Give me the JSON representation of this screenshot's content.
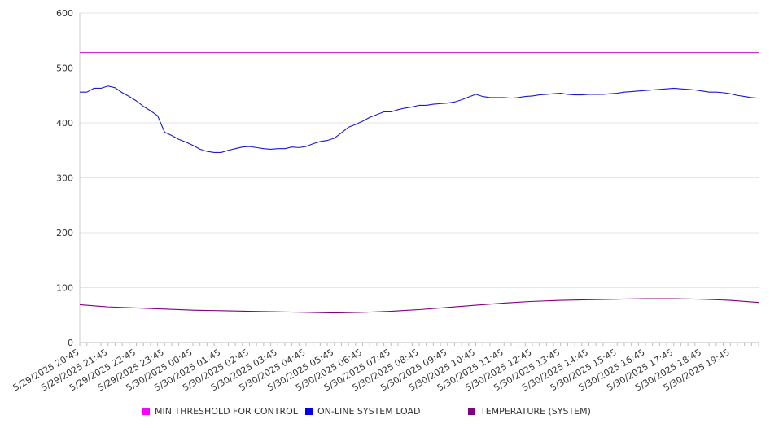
{
  "chart_data": {
    "type": "line",
    "title": "",
    "xlabel": "",
    "ylabel": "",
    "ylim": [
      0,
      600
    ],
    "y_ticks": [
      0,
      100,
      200,
      300,
      400,
      500,
      600
    ],
    "grid": "horizontal",
    "legend_position": "bottom",
    "x_start": "5/29/2025 20:45",
    "x_end": "5/30/2025 20:45",
    "x_tick_labels": [
      "5/29/2025 20:45",
      "5/29/2025 21:45",
      "5/29/2025 22:45",
      "5/29/2025 23:45",
      "5/30/2025 00:45",
      "5/30/2025 01:45",
      "5/30/2025 02:45",
      "5/30/2025 03:45",
      "5/30/2025 04:45",
      "5/30/2025 05:45",
      "5/30/2025 06:45",
      "5/30/2025 07:45",
      "5/30/2025 08:45",
      "5/30/2025 09:45",
      "5/30/2025 10:45",
      "5/30/2025 11:45",
      "5/30/2025 12:45",
      "5/30/2025 13:45",
      "5/30/2025 14:45",
      "5/30/2025 15:45",
      "5/30/2025 16:45",
      "5/30/2025 17:45",
      "5/30/2025 18:45",
      "5/30/2025 19:45"
    ],
    "series": [
      {
        "name": "MIN THRESHOLD FOR CONTROL",
        "color": "#cc33cc",
        "x": [
          "5/29/2025 20:45",
          "5/30/2025 20:45"
        ],
        "values": [
          528,
          528
        ]
      },
      {
        "name": "ON-LINE SYSTEM LOAD",
        "color": "#1a1acc",
        "x": [
          "5/29/2025 20:45",
          "5/29/2025 21:00",
          "5/29/2025 21:15",
          "5/29/2025 21:30",
          "5/29/2025 21:45",
          "5/29/2025 22:00",
          "5/29/2025 22:15",
          "5/29/2025 22:30",
          "5/29/2025 22:45",
          "5/29/2025 23:00",
          "5/29/2025 23:15",
          "5/29/2025 23:30",
          "5/29/2025 23:45",
          "5/30/2025 00:00",
          "5/30/2025 00:15",
          "5/30/2025 00:30",
          "5/30/2025 00:45",
          "5/30/2025 01:00",
          "5/30/2025 01:15",
          "5/30/2025 01:30",
          "5/30/2025 01:45",
          "5/30/2025 02:00",
          "5/30/2025 02:15",
          "5/30/2025 02:30",
          "5/30/2025 02:45",
          "5/30/2025 03:00",
          "5/30/2025 03:15",
          "5/30/2025 03:30",
          "5/30/2025 03:45",
          "5/30/2025 04:00",
          "5/30/2025 04:15",
          "5/30/2025 04:30",
          "5/30/2025 04:45",
          "5/30/2025 05:00",
          "5/30/2025 05:15",
          "5/30/2025 05:30",
          "5/30/2025 05:45",
          "5/30/2025 06:00",
          "5/30/2025 06:15",
          "5/30/2025 06:30",
          "5/30/2025 06:45",
          "5/30/2025 07:00",
          "5/30/2025 07:15",
          "5/30/2025 07:30",
          "5/30/2025 07:45",
          "5/30/2025 08:00",
          "5/30/2025 08:15",
          "5/30/2025 08:30",
          "5/30/2025 08:45",
          "5/30/2025 09:00",
          "5/30/2025 09:15",
          "5/30/2025 09:30",
          "5/30/2025 09:45",
          "5/30/2025 10:00",
          "5/30/2025 10:15",
          "5/30/2025 10:30",
          "5/30/2025 10:45",
          "5/30/2025 11:00",
          "5/30/2025 11:15",
          "5/30/2025 11:30",
          "5/30/2025 11:45",
          "5/30/2025 12:00",
          "5/30/2025 12:15",
          "5/30/2025 12:30",
          "5/30/2025 12:45",
          "5/30/2025 13:00",
          "5/30/2025 13:15",
          "5/30/2025 13:30",
          "5/30/2025 13:45",
          "5/30/2025 14:00",
          "5/30/2025 14:15",
          "5/30/2025 14:30",
          "5/30/2025 14:45",
          "5/30/2025 15:00",
          "5/30/2025 15:15",
          "5/30/2025 15:30",
          "5/30/2025 15:45",
          "5/30/2025 16:00",
          "5/30/2025 16:15",
          "5/30/2025 16:30",
          "5/30/2025 16:45",
          "5/30/2025 17:00",
          "5/30/2025 17:15",
          "5/30/2025 17:30",
          "5/30/2025 17:45",
          "5/30/2025 18:00",
          "5/30/2025 18:15",
          "5/30/2025 18:30",
          "5/30/2025 18:45",
          "5/30/2025 19:00",
          "5/30/2025 19:15",
          "5/30/2025 19:30",
          "5/30/2025 19:45",
          "5/30/2025 20:00",
          "5/30/2025 20:15",
          "5/30/2025 20:30",
          "5/30/2025 20:45"
        ],
        "values": [
          456,
          456,
          463,
          463,
          467,
          464,
          455,
          448,
          440,
          430,
          422,
          413,
          383,
          377,
          370,
          365,
          359,
          352,
          348,
          346,
          346,
          350,
          353,
          356,
          357,
          355,
          353,
          352,
          353,
          353,
          356,
          355,
          357,
          362,
          366,
          368,
          372,
          382,
          392,
          397,
          403,
          410,
          415,
          420,
          420,
          424,
          427,
          429,
          432,
          432,
          434,
          435,
          436,
          438,
          442,
          447,
          452,
          448,
          446,
          446,
          446,
          445,
          446,
          448,
          449,
          451,
          452,
          453,
          454,
          452,
          451,
          451,
          452,
          452,
          452,
          453,
          454,
          456,
          457,
          458,
          459,
          460,
          461,
          462,
          463,
          462,
          461,
          460,
          458,
          456,
          456,
          455,
          453,
          450,
          448,
          446,
          445
        ]
      },
      {
        "name": "TEMPERATURE (SYSTEM)",
        "color": "#800080",
        "x": [
          "5/29/2025 20:45",
          "5/29/2025 21:45",
          "5/29/2025 22:45",
          "5/29/2025 23:45",
          "5/30/2025 00:45",
          "5/30/2025 01:45",
          "5/30/2025 02:45",
          "5/30/2025 03:45",
          "5/30/2025 04:45",
          "5/30/2025 05:45",
          "5/30/2025 06:45",
          "5/30/2025 07:45",
          "5/30/2025 08:45",
          "5/30/2025 09:45",
          "5/30/2025 10:45",
          "5/30/2025 11:45",
          "5/30/2025 12:45",
          "5/30/2025 13:45",
          "5/30/2025 14:45",
          "5/30/2025 15:45",
          "5/30/2025 16:45",
          "5/30/2025 17:45",
          "5/30/2025 18:45",
          "5/30/2025 19:45",
          "5/30/2025 20:45"
        ],
        "values": [
          69,
          65,
          63,
          61,
          59,
          58,
          57,
          56,
          55,
          54,
          55,
          57,
          60,
          64,
          68,
          72,
          75,
          77,
          78,
          79,
          80,
          80,
          79,
          77,
          73
        ]
      }
    ]
  }
}
